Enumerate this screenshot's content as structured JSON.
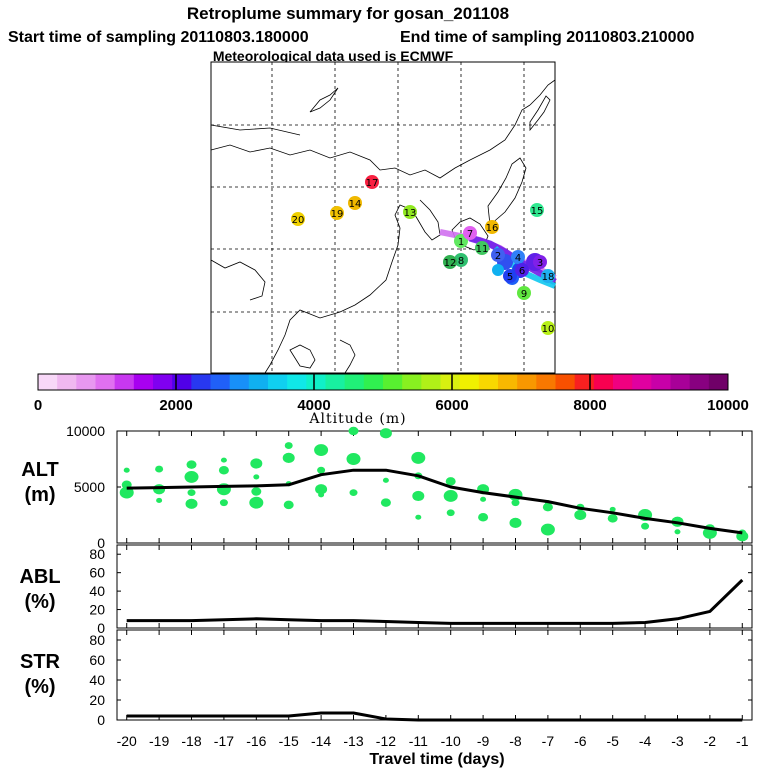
{
  "header": {
    "title": "Retroplume summary for gosan_201108",
    "start_label": "Start time of sampling 20110803.180000",
    "end_label": "End time of sampling 20110803.210000",
    "met_label": "Meteorological data used is ECMWF"
  },
  "colorbar": {
    "label": "Altitude (m)",
    "ticks": [
      "0",
      "2000",
      "4000",
      "6000",
      "8000",
      "10000"
    ],
    "min": 0,
    "max": 10000,
    "colors": [
      "#f8d8f8",
      "#f0b8f0",
      "#e898f0",
      "#e070f0",
      "#c838f0",
      "#a800f0",
      "#8000f0",
      "#5000e8",
      "#2838f0",
      "#2060f8",
      "#1890f8",
      "#10b0f0",
      "#10d0f0",
      "#10e8e8",
      "#10f0c8",
      "#18f0a0",
      "#20f078",
      "#30f050",
      "#58f030",
      "#88f020",
      "#b0f018",
      "#d8f010",
      "#f0f000",
      "#f8d800",
      "#f8b800",
      "#f89800",
      "#f87800",
      "#f85000",
      "#f82020",
      "#f80050",
      "#f00080",
      "#e000a0",
      "#c800a8",
      "#a80098",
      "#880080",
      "#700068"
    ]
  },
  "map_markers": [
    {
      "label": "1",
      "color": "#60e860"
    },
    {
      "label": "2",
      "color": "#4060f0"
    },
    {
      "label": "3",
      "color": "#8020e8"
    },
    {
      "label": "4",
      "color": "#3080f8"
    },
    {
      "label": "5",
      "color": "#2040f0"
    },
    {
      "label": "6",
      "color": "#5020e8"
    },
    {
      "label": "7",
      "color": "#e060f0"
    },
    {
      "label": "8",
      "color": "#30c070"
    },
    {
      "label": "9",
      "color": "#60e840"
    },
    {
      "label": "10",
      "color": "#b8f018"
    },
    {
      "label": "11",
      "color": "#40c860"
    },
    {
      "label": "12",
      "color": "#30b050"
    },
    {
      "label": "13",
      "color": "#90e820"
    },
    {
      "label": "14",
      "color": "#f0b800"
    },
    {
      "label": "15",
      "color": "#30e890"
    },
    {
      "label": "16",
      "color": "#f0b800"
    },
    {
      "label": "17",
      "color": "#f82040"
    },
    {
      "label": "18",
      "color": "#20b0f0"
    },
    {
      "label": "19",
      "color": "#f0c000"
    },
    {
      "label": "20",
      "color": "#f0d000"
    }
  ],
  "chart_data": [
    {
      "type": "line",
      "panel": "altitude",
      "ylabel": "ALT\n(m)",
      "ylabel_line1": "ALT",
      "ylabel_line2": "(m)",
      "ylim": [
        0,
        10000
      ],
      "yticks": [
        "0",
        "5000",
        "10000"
      ],
      "x": [
        -20,
        -19,
        -18,
        -17,
        -16,
        -15,
        -14,
        -13,
        -12,
        -11,
        -10,
        -9,
        -8,
        -7,
        -6,
        -5,
        -4,
        -3,
        -2,
        -1
      ],
      "series": [
        {
          "name": "mean altitude",
          "values": [
            4900,
            4950,
            5000,
            5050,
            5100,
            5200,
            6100,
            6500,
            6500,
            6000,
            5000,
            4500,
            4100,
            3700,
            3100,
            2700,
            2200,
            1800,
            1300,
            900
          ]
        }
      ],
      "scatter_color": "#20e860",
      "scatter": [
        {
          "x": -20,
          "y": 6500
        },
        {
          "x": -20,
          "y": 5200
        },
        {
          "x": -20,
          "y": 4500
        },
        {
          "x": -19,
          "y": 6600
        },
        {
          "x": -19,
          "y": 4800
        },
        {
          "x": -19,
          "y": 3800
        },
        {
          "x": -18,
          "y": 7000
        },
        {
          "x": -18,
          "y": 5900
        },
        {
          "x": -18,
          "y": 4500
        },
        {
          "x": -18,
          "y": 3500
        },
        {
          "x": -17,
          "y": 7400
        },
        {
          "x": -17,
          "y": 6500
        },
        {
          "x": -17,
          "y": 4800
        },
        {
          "x": -17,
          "y": 3600
        },
        {
          "x": -16,
          "y": 7100
        },
        {
          "x": -16,
          "y": 5900
        },
        {
          "x": -16,
          "y": 4600
        },
        {
          "x": -16,
          "y": 3600
        },
        {
          "x": -15,
          "y": 8700
        },
        {
          "x": -15,
          "y": 7600
        },
        {
          "x": -15,
          "y": 5300
        },
        {
          "x": -15,
          "y": 3400
        },
        {
          "x": -14,
          "y": 8300
        },
        {
          "x": -14,
          "y": 6500
        },
        {
          "x": -14,
          "y": 4800
        },
        {
          "x": -14,
          "y": 4300
        },
        {
          "x": -13,
          "y": 10000
        },
        {
          "x": -13,
          "y": 7500
        },
        {
          "x": -13,
          "y": 4500
        },
        {
          "x": -12,
          "y": 9800
        },
        {
          "x": -12,
          "y": 5600
        },
        {
          "x": -12,
          "y": 3600
        },
        {
          "x": -11,
          "y": 7600
        },
        {
          "x": -11,
          "y": 6000
        },
        {
          "x": -11,
          "y": 4200
        },
        {
          "x": -11,
          "y": 2300
        },
        {
          "x": -10,
          "y": 5500
        },
        {
          "x": -10,
          "y": 4200
        },
        {
          "x": -10,
          "y": 2700
        },
        {
          "x": -9,
          "y": 4800
        },
        {
          "x": -9,
          "y": 3900
        },
        {
          "x": -9,
          "y": 2300
        },
        {
          "x": -8,
          "y": 4300
        },
        {
          "x": -8,
          "y": 3600
        },
        {
          "x": -8,
          "y": 1800
        },
        {
          "x": -7,
          "y": 3600
        },
        {
          "x": -7,
          "y": 3200
        },
        {
          "x": -7,
          "y": 1200
        },
        {
          "x": -6,
          "y": 3200
        },
        {
          "x": -6,
          "y": 2500
        },
        {
          "x": -5,
          "y": 3000
        },
        {
          "x": -5,
          "y": 2200
        },
        {
          "x": -4,
          "y": 2500
        },
        {
          "x": -4,
          "y": 1500
        },
        {
          "x": -3,
          "y": 1900
        },
        {
          "x": -3,
          "y": 1000
        },
        {
          "x": -2,
          "y": 1300
        },
        {
          "x": -2,
          "y": 900
        },
        {
          "x": -1,
          "y": 900
        },
        {
          "x": -1,
          "y": 600
        }
      ]
    },
    {
      "type": "line",
      "panel": "abl",
      "ylabel_line1": "ABL",
      "ylabel_line2": "(%)",
      "ylim": [
        0,
        90
      ],
      "yticks": [
        "0",
        "20",
        "40",
        "60",
        "80"
      ],
      "x": [
        -20,
        -19,
        -18,
        -17,
        -16,
        -15,
        -14,
        -13,
        -12,
        -11,
        -10,
        -9,
        -8,
        -7,
        -6,
        -5,
        -4,
        -3,
        -2,
        -1
      ],
      "series": [
        {
          "name": "ABL fraction",
          "values": [
            8,
            8,
            8,
            9,
            10,
            9,
            8,
            8,
            7,
            6,
            5,
            5,
            5,
            5,
            5,
            5,
            6,
            10,
            18,
            52
          ]
        }
      ]
    },
    {
      "type": "line",
      "panel": "str",
      "ylabel_line1": "STR",
      "ylabel_line2": "(%)",
      "ylim": [
        0,
        90
      ],
      "yticks": [
        "0",
        "20",
        "40",
        "60",
        "80"
      ],
      "x": [
        -20,
        -19,
        -18,
        -17,
        -16,
        -15,
        -14,
        -13,
        -12,
        -11,
        -10,
        -9,
        -8,
        -7,
        -6,
        -5,
        -4,
        -3,
        -2,
        -1
      ],
      "series": [
        {
          "name": "stratospheric fraction",
          "values": [
            4,
            4,
            4,
            4,
            4,
            4,
            7,
            7,
            1,
            0,
            0,
            0,
            0,
            0,
            0,
            0,
            0,
            0,
            0,
            0
          ]
        }
      ],
      "xlabel": "Travel time (days)",
      "xticks": [
        "-20",
        "-19",
        "-18",
        "-17",
        "-16",
        "-15",
        "-14",
        "-13",
        "-12",
        "-11",
        "-10",
        "-9",
        "-8",
        "-7",
        "-6",
        "-5",
        "-4",
        "-3",
        "-2",
        "-1"
      ]
    }
  ]
}
